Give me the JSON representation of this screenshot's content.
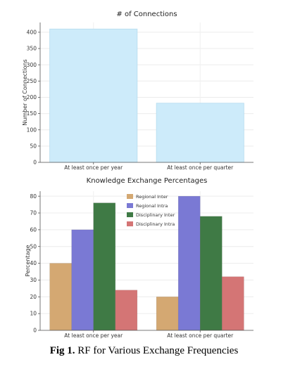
{
  "caption": {
    "label": "Fig 1.",
    "text": " RF for Various Exchange Frequencies"
  },
  "chart_data": [
    {
      "type": "bar",
      "title": "# of Connections",
      "ylabel": "Number of Connections",
      "xlabel": "",
      "categories": [
        "At least once per year",
        "At least once per quarter"
      ],
      "values": [
        410,
        182
      ],
      "ylim": [
        0,
        430
      ],
      "yticks": [
        0,
        50,
        100,
        150,
        200,
        250,
        300,
        350,
        400
      ],
      "grid": true,
      "color": "#cdebfa"
    },
    {
      "type": "bar",
      "title": "Knowledge Exchange Percentages",
      "ylabel": "Percentage",
      "xlabel": "",
      "categories": [
        "At least once per year",
        "At least once per quarter"
      ],
      "ylim": [
        0,
        83
      ],
      "yticks": [
        0,
        10,
        20,
        30,
        40,
        50,
        60,
        70,
        80
      ],
      "grid": true,
      "legend": "top-center",
      "series": [
        {
          "name": "Regional Inter",
          "values": [
            40,
            20
          ],
          "color": "#d4a872"
        },
        {
          "name": "Regional Intra",
          "values": [
            60,
            80
          ],
          "color": "#7a79d4"
        },
        {
          "name": "Disciplinary Inter",
          "values": [
            76,
            68
          ],
          "color": "#3f7a45"
        },
        {
          "name": "Disciplinary Intra",
          "values": [
            24,
            32
          ],
          "color": "#d47575"
        }
      ]
    }
  ]
}
